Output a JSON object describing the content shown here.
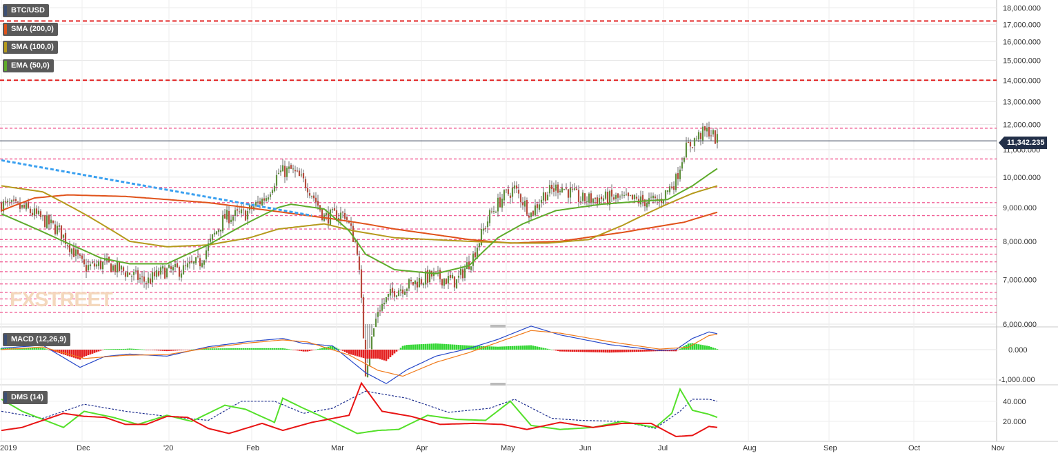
{
  "chart_data": [
    {
      "type": "candlestick",
      "title": "BTC/USD",
      "overlays": [
        {
          "name": "SMA (200,0)",
          "color": "#e0521a"
        },
        {
          "name": "SMA (100,0)",
          "color": "#b59a1c"
        },
        {
          "name": "EMA (50,0)",
          "color": "#5eab2b"
        }
      ],
      "x_ticks": [
        "2019",
        "Dec",
        "'20",
        "Feb",
        "Mar",
        "Apr",
        "May",
        "Jun",
        "Jul",
        "Aug",
        "Sep",
        "Oct",
        "Nov"
      ],
      "y_ticks": [
        "18,000.000",
        "17,000.000",
        "16,000.000",
        "15,000.000",
        "14,000.000",
        "13,000.000",
        "12,000.000",
        "11,000.000",
        "10,000.000",
        "9,000.000",
        "8,000.000",
        "7,000.000",
        "6,000.000"
      ],
      "ylim": [
        6000,
        18500
      ],
      "y_scale": "log",
      "last_price": "11,342.235",
      "close_anchors": [
        [
          0,
          9100
        ],
        [
          12,
          8950
        ],
        [
          28,
          8300
        ],
        [
          40,
          7300
        ],
        [
          50,
          7400
        ],
        [
          62,
          7150
        ],
        [
          70,
          6950
        ],
        [
          78,
          7200
        ],
        [
          88,
          7250
        ],
        [
          96,
          7450
        ],
        [
          108,
          8700
        ],
        [
          118,
          8800
        ],
        [
          128,
          9350
        ],
        [
          134,
          10150
        ],
        [
          140,
          10250
        ],
        [
          148,
          9700
        ],
        [
          156,
          8700
        ],
        [
          166,
          8800
        ],
        [
          172,
          7800
        ],
        [
          176,
          5100
        ],
        [
          182,
          6300
        ],
        [
          190,
          6750
        ],
        [
          198,
          6900
        ],
        [
          208,
          7100
        ],
        [
          220,
          6950
        ],
        [
          228,
          7600
        ],
        [
          236,
          8750
        ],
        [
          242,
          9300
        ],
        [
          248,
          9600
        ],
        [
          256,
          8800
        ],
        [
          262,
          9400
        ],
        [
          270,
          9700
        ],
        [
          280,
          9250
        ],
        [
          294,
          9300
        ],
        [
          310,
          9200
        ],
        [
          318,
          9200
        ],
        [
          326,
          9900
        ],
        [
          330,
          10950
        ],
        [
          334,
          11300
        ],
        [
          338,
          11600
        ],
        [
          342,
          11750
        ],
        [
          346,
          11342
        ]
      ],
      "ema50_anchors": [
        [
          0,
          8800
        ],
        [
          30,
          8000
        ],
        [
          48,
          7550
        ],
        [
          62,
          7400
        ],
        [
          80,
          7400
        ],
        [
          100,
          7900
        ],
        [
          118,
          8500
        ],
        [
          134,
          9000
        ],
        [
          140,
          9100
        ],
        [
          156,
          8950
        ],
        [
          168,
          8300
        ],
        [
          176,
          7650
        ],
        [
          190,
          7250
        ],
        [
          210,
          7150
        ],
        [
          226,
          7350
        ],
        [
          240,
          8100
        ],
        [
          252,
          8500
        ],
        [
          268,
          8900
        ],
        [
          290,
          9100
        ],
        [
          310,
          9200
        ],
        [
          322,
          9250
        ],
        [
          334,
          9700
        ],
        [
          346,
          10300
        ]
      ],
      "sma100_anchors": [
        [
          0,
          9700
        ],
        [
          20,
          9500
        ],
        [
          40,
          8800
        ],
        [
          62,
          8000
        ],
        [
          80,
          7850
        ],
        [
          100,
          7900
        ],
        [
          120,
          8100
        ],
        [
          134,
          8350
        ],
        [
          156,
          8500
        ],
        [
          170,
          8300
        ],
        [
          190,
          8100
        ],
        [
          226,
          8000
        ],
        [
          250,
          7950
        ],
        [
          264,
          7950
        ],
        [
          284,
          8050
        ],
        [
          300,
          8450
        ],
        [
          320,
          9050
        ],
        [
          334,
          9450
        ],
        [
          346,
          9700
        ]
      ],
      "sma200_anchors": [
        [
          0,
          8900
        ],
        [
          16,
          9300
        ],
        [
          32,
          9400
        ],
        [
          60,
          9350
        ],
        [
          100,
          9150
        ],
        [
          130,
          8900
        ],
        [
          160,
          8650
        ],
        [
          176,
          8500
        ],
        [
          190,
          8350
        ],
        [
          226,
          8050
        ],
        [
          246,
          7950
        ],
        [
          270,
          8000
        ],
        [
          300,
          8250
        ],
        [
          330,
          8550
        ],
        [
          346,
          8850
        ]
      ],
      "trendline": {
        "start": [
          0,
          10600
        ],
        "end": [
          150,
          8750
        ],
        "color": "#3aa0f0"
      },
      "red_levels": [
        17200,
        14000
      ],
      "pink_levels": [
        11850,
        10650,
        9650,
        9150,
        8750,
        8350,
        8050,
        7850,
        7650,
        7450,
        7200,
        6900,
        6700,
        6550,
        6400,
        6250
      ],
      "black_level": 11342
    },
    {
      "type": "macd",
      "title": "MACD (12,26,9)",
      "y_ticks": [
        "0.000",
        "-1,000.000"
      ],
      "macd_anchors": [
        [
          0,
          50
        ],
        [
          20,
          150
        ],
        [
          38,
          -600
        ],
        [
          50,
          -230
        ],
        [
          62,
          -150
        ],
        [
          80,
          -220
        ],
        [
          100,
          100
        ],
        [
          120,
          280
        ],
        [
          136,
          380
        ],
        [
          146,
          210
        ],
        [
          160,
          130
        ],
        [
          176,
          -780
        ],
        [
          186,
          -1150
        ],
        [
          196,
          -680
        ],
        [
          210,
          -220
        ],
        [
          226,
          40
        ],
        [
          240,
          350
        ],
        [
          256,
          800
        ],
        [
          270,
          500
        ],
        [
          294,
          170
        ],
        [
          318,
          -30
        ],
        [
          326,
          0
        ],
        [
          334,
          380
        ],
        [
          342,
          600
        ],
        [
          346,
          540
        ]
      ],
      "signal_anchors": [
        [
          0,
          0
        ],
        [
          20,
          90
        ],
        [
          40,
          -300
        ],
        [
          60,
          -190
        ],
        [
          80,
          -170
        ],
        [
          100,
          60
        ],
        [
          120,
          230
        ],
        [
          136,
          330
        ],
        [
          148,
          260
        ],
        [
          168,
          -180
        ],
        [
          182,
          -700
        ],
        [
          194,
          -900
        ],
        [
          210,
          -430
        ],
        [
          226,
          -100
        ],
        [
          240,
          250
        ],
        [
          256,
          650
        ],
        [
          270,
          560
        ],
        [
          294,
          270
        ],
        [
          318,
          20
        ],
        [
          332,
          80
        ],
        [
          342,
          480
        ],
        [
          346,
          520
        ]
      ]
    },
    {
      "type": "dms",
      "title": "DMS (14)",
      "y_ticks": [
        "40.000",
        "20.000"
      ],
      "plus_di_anchors": [
        [
          0,
          42
        ],
        [
          10,
          30
        ],
        [
          20,
          22
        ],
        [
          30,
          14
        ],
        [
          40,
          30
        ],
        [
          54,
          24
        ],
        [
          66,
          17
        ],
        [
          80,
          26
        ],
        [
          92,
          20
        ],
        [
          108,
          36
        ],
        [
          118,
          32
        ],
        [
          132,
          19
        ],
        [
          136,
          43
        ],
        [
          146,
          33
        ],
        [
          160,
          20
        ],
        [
          172,
          8
        ],
        [
          182,
          11
        ],
        [
          192,
          12
        ],
        [
          206,
          26
        ],
        [
          220,
          22
        ],
        [
          234,
          21
        ],
        [
          246,
          40
        ],
        [
          256,
          16
        ],
        [
          270,
          12
        ],
        [
          286,
          14
        ],
        [
          300,
          20
        ],
        [
          316,
          14
        ],
        [
          324,
          28
        ],
        [
          328,
          52
        ],
        [
          334,
          31
        ],
        [
          342,
          27
        ],
        [
          346,
          24
        ]
      ],
      "minus_di_anchors": [
        [
          0,
          11
        ],
        [
          10,
          14
        ],
        [
          20,
          21
        ],
        [
          30,
          28
        ],
        [
          40,
          25
        ],
        [
          50,
          24
        ],
        [
          60,
          17
        ],
        [
          70,
          17
        ],
        [
          80,
          25
        ],
        [
          90,
          24
        ],
        [
          100,
          13
        ],
        [
          110,
          8
        ],
        [
          126,
          18
        ],
        [
          136,
          11
        ],
        [
          150,
          19
        ],
        [
          168,
          26
        ],
        [
          174,
          58
        ],
        [
          184,
          30
        ],
        [
          198,
          25
        ],
        [
          212,
          17
        ],
        [
          228,
          18
        ],
        [
          242,
          17
        ],
        [
          254,
          12
        ],
        [
          270,
          19
        ],
        [
          286,
          14
        ],
        [
          300,
          18
        ],
        [
          314,
          18
        ],
        [
          326,
          5
        ],
        [
          334,
          6
        ],
        [
          342,
          15
        ],
        [
          346,
          14
        ]
      ],
      "adx_anchors": [
        [
          0,
          30
        ],
        [
          20,
          23
        ],
        [
          40,
          37
        ],
        [
          60,
          30
        ],
        [
          80,
          25
        ],
        [
          100,
          21
        ],
        [
          116,
          40
        ],
        [
          132,
          40
        ],
        [
          146,
          28
        ],
        [
          160,
          33
        ],
        [
          176,
          50
        ],
        [
          196,
          43
        ],
        [
          216,
          29
        ],
        [
          236,
          33
        ],
        [
          248,
          42
        ],
        [
          266,
          23
        ],
        [
          280,
          21
        ],
        [
          300,
          20
        ],
        [
          316,
          13
        ],
        [
          328,
          30
        ],
        [
          334,
          42
        ],
        [
          342,
          42
        ],
        [
          346,
          40
        ]
      ]
    }
  ]
}
